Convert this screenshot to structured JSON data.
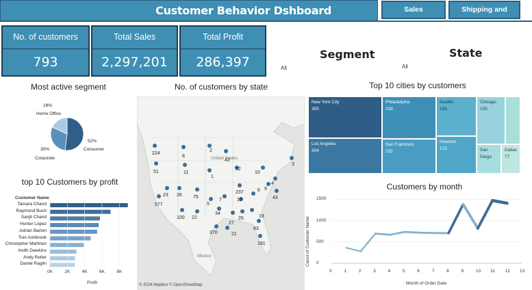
{
  "header": {
    "title": "Customer Behavior Dshboard",
    "nav": [
      "Sales Performance",
      "Shipping and Delivery"
    ]
  },
  "kpis": [
    {
      "label": "No. of customers",
      "value": "793"
    },
    {
      "label": "Total Sales",
      "value": "2,297,201"
    },
    {
      "label": "Total Profit",
      "value": "286,397"
    }
  ],
  "filters": {
    "segment": {
      "label": "Segment",
      "value": "All"
    },
    "state": {
      "label": "State",
      "value": "All"
    }
  },
  "segment_chart": {
    "title": "Most active segment",
    "slices": [
      {
        "name": "Consumer",
        "pct": "52%",
        "value": 52,
        "color": "#2f5f89"
      },
      {
        "name": "Corporate",
        "pct": "30%",
        "value": 30,
        "color": "#5b8fbc"
      },
      {
        "name": "Home Office",
        "pct": "18%",
        "value": 18,
        "color": "#a9cbe4"
      }
    ]
  },
  "map": {
    "title": "No. of customers by state",
    "credit": "© 2024 Mapbox © OpenStreetMap",
    "labels": [
      "224",
      "8",
      "2",
      "42",
      "52",
      "3",
      "51",
      "11",
      "1",
      "10",
      "75",
      "23",
      "26",
      "237",
      "43",
      "577",
      "100",
      "22",
      "34",
      "27",
      "25",
      "19",
      "83",
      "370",
      "21",
      "181",
      "13",
      "6",
      "7",
      "5",
      "9",
      "4"
    ],
    "place": [
      "United States",
      "Mexico"
    ]
  },
  "cities": {
    "title": "Top 10 cities by customers",
    "items": [
      {
        "name": "New York City",
        "value": "355"
      },
      {
        "name": "Los Angeles",
        "value": "304"
      },
      {
        "name": "Philadelphia",
        "value": "239"
      },
      {
        "name": "San Francisco",
        "value": "232"
      },
      {
        "name": "Seattle",
        "value": "188"
      },
      {
        "name": "Houston",
        "value": "172"
      },
      {
        "name": "Chicago",
        "value": "155"
      },
      {
        "name": "San Diego",
        "value": ""
      },
      {
        "name": "Dallas",
        "value": "77"
      },
      {
        "name": "",
        "value": ""
      }
    ]
  },
  "profit_chart": {
    "title": "top 10 Customers by profit",
    "axis_header": "Customer Name",
    "xlabel": "Profit",
    "ticks": [
      "0K",
      "2K",
      "4K",
      "6K",
      "8K"
    ]
  },
  "month_chart": {
    "title": "Customers by month",
    "xlabel": "Month of Order Date",
    "ylabel": "Count of Customer Name",
    "yticks": [
      "1500",
      "1000",
      "500",
      "0"
    ],
    "xticks": [
      "0",
      "1",
      "2",
      "3",
      "4",
      "5",
      "6",
      "7",
      "8",
      "9",
      "10",
      "11",
      "12",
      "13"
    ]
  },
  "chart_data": [
    {
      "type": "bar",
      "title": "top 10 Customers by profit",
      "xlabel": "Profit",
      "ylabel": "Customer Name",
      "xlim": [
        0,
        9000
      ],
      "categories": [
        "Tamara Chand",
        "Raymond Buch",
        "Sanjit Chand",
        "Hunter Lopez",
        "Adrian Barton",
        "Tom Ashbrook",
        "Christopher Martinez",
        "Keith Dawkins",
        "Andy Reiter",
        "Daniel Raglin"
      ],
      "values": [
        8980,
        6980,
        5760,
        5620,
        5440,
        4700,
        3900,
        3040,
        2880,
        2870
      ]
    },
    {
      "type": "line",
      "title": "Customers by month",
      "xlabel": "Month of Order Date",
      "ylabel": "Count of Customer Name",
      "xlim": [
        0,
        13
      ],
      "ylim": [
        0,
        1650
      ],
      "x": [
        1,
        2,
        3,
        4,
        5,
        6,
        7,
        8,
        9,
        10,
        11,
        12
      ],
      "values": [
        366,
        280,
        696,
        668,
        735,
        717,
        710,
        706,
        1383,
        819,
        1471,
        1408
      ]
    },
    {
      "type": "pie",
      "title": "Most active segment",
      "categories": [
        "Consumer",
        "Corporate",
        "Home Office"
      ],
      "values": [
        52,
        30,
        18
      ]
    }
  ]
}
